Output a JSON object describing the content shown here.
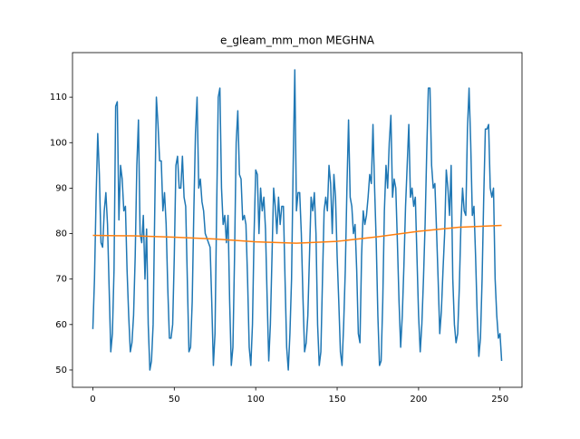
{
  "chart_data": {
    "type": "line",
    "title": "e_gleam_mm_mon MEGHNA",
    "xlim": [
      -12.5,
      263.5
    ],
    "ylim": [
      46.2,
      119.8
    ],
    "xticks": [
      0,
      50,
      100,
      150,
      200,
      250
    ],
    "yticks": [
      50,
      60,
      70,
      80,
      90,
      100,
      110
    ],
    "series": [
      {
        "color": "#1f77b4",
        "x": [
          0,
          1,
          2,
          3,
          4,
          5,
          6,
          7,
          8,
          9,
          10,
          11,
          12,
          13,
          14,
          15,
          16,
          17,
          18,
          19,
          20,
          21,
          22,
          23,
          24,
          25,
          26,
          27,
          28,
          29,
          30,
          31,
          32,
          33,
          34,
          35,
          36,
          37,
          38,
          39,
          40,
          41,
          42,
          43,
          44,
          45,
          46,
          47,
          48,
          49,
          50,
          51,
          52,
          53,
          54,
          55,
          56,
          57,
          58,
          59,
          60,
          61,
          62,
          63,
          64,
          65,
          66,
          67,
          68,
          69,
          70,
          71,
          72,
          73,
          74,
          75,
          76,
          77,
          78,
          79,
          80,
          81,
          82,
          83,
          84,
          85,
          86,
          87,
          88,
          89,
          90,
          91,
          92,
          93,
          94,
          95,
          96,
          97,
          98,
          99,
          100,
          101,
          102,
          103,
          104,
          105,
          106,
          107,
          108,
          109,
          110,
          111,
          112,
          113,
          114,
          115,
          116,
          117,
          118,
          119,
          120,
          121,
          122,
          123,
          124,
          125,
          126,
          127,
          128,
          129,
          130,
          131,
          132,
          133,
          134,
          135,
          136,
          137,
          138,
          139,
          140,
          141,
          142,
          143,
          144,
          145,
          146,
          147,
          148,
          149,
          150,
          151,
          152,
          153,
          154,
          155,
          156,
          157,
          158,
          159,
          160,
          161,
          162,
          163,
          164,
          165,
          166,
          167,
          168,
          169,
          170,
          171,
          172,
          173,
          174,
          175,
          176,
          177,
          178,
          179,
          180,
          181,
          182,
          183,
          184,
          185,
          186,
          187,
          188,
          189,
          190,
          191,
          192,
          193,
          194,
          195,
          196,
          197,
          198,
          199,
          200,
          201,
          202,
          203,
          204,
          205,
          206,
          207,
          208,
          209,
          210,
          211,
          212,
          213,
          214,
          215,
          216,
          217,
          218,
          219,
          220,
          221,
          222,
          223,
          224,
          225,
          226,
          227,
          228,
          229,
          230,
          231,
          232,
          233,
          234,
          235,
          236,
          237,
          238,
          239,
          240,
          241,
          242,
          243,
          244,
          245,
          246,
          247,
          248,
          249,
          250,
          251
        ],
        "values": [
          59,
          70,
          88,
          102,
          93,
          78,
          77,
          85,
          89,
          82,
          68,
          54,
          58,
          72,
          108,
          109,
          83,
          95,
          92,
          85,
          86,
          72,
          62,
          54,
          56,
          62,
          75,
          95,
          105,
          80,
          78,
          84,
          70,
          81,
          60,
          50,
          52,
          60,
          85,
          110,
          104,
          96,
          96,
          85,
          89,
          82,
          68,
          57,
          57,
          60,
          75,
          95,
          97,
          90,
          90,
          97,
          88,
          86,
          70,
          54,
          55,
          65,
          85,
          102,
          110,
          90,
          92,
          87,
          85,
          80,
          79,
          78,
          77,
          65,
          51,
          58,
          85,
          110,
          112,
          90,
          82,
          84,
          78,
          84,
          65,
          51,
          55,
          75,
          100,
          107,
          93,
          92,
          83,
          84,
          82,
          70,
          55,
          51,
          60,
          80,
          94,
          93,
          80,
          90,
          85,
          88,
          81,
          66,
          52,
          60,
          75,
          90,
          86,
          80,
          88,
          82,
          86,
          86,
          70,
          55,
          50,
          58,
          70,
          95,
          116,
          85,
          89,
          89,
          80,
          66,
          54,
          56,
          62,
          75,
          88,
          85,
          89,
          80,
          60,
          51,
          54,
          70,
          85,
          88,
          85,
          95,
          91,
          80,
          93,
          88,
          75,
          65,
          54,
          51,
          60,
          72,
          90,
          105,
          88,
          86,
          80,
          82,
          72,
          58,
          56,
          75,
          85,
          82,
          84,
          88,
          93,
          91,
          104,
          90,
          78,
          62,
          51,
          52,
          65,
          85,
          95,
          90,
          100,
          106,
          88,
          92,
          90,
          78,
          65,
          55,
          62,
          73,
          86,
          95,
          104,
          88,
          90,
          86,
          88,
          75,
          62,
          54,
          60,
          70,
          82,
          98,
          112,
          112,
          95,
          90,
          91,
          81,
          70,
          58,
          63,
          72,
          80,
          94,
          90,
          84,
          95,
          70,
          60,
          56,
          58,
          68,
          82,
          90,
          85,
          84,
          103,
          112,
          100,
          84,
          86,
          75,
          62,
          53,
          57,
          70,
          88,
          103,
          103,
          104,
          90,
          88,
          90,
          70,
          62,
          57,
          58,
          52
        ]
      },
      {
        "color": "#ff7f0e",
        "x": [
          0,
          25,
          50,
          75,
          100,
          125,
          150,
          175,
          200,
          225,
          251
        ],
        "values": [
          79.6,
          79.5,
          79.2,
          78.8,
          78.2,
          77.9,
          78.3,
          79.3,
          80.5,
          81.4,
          81.8
        ]
      }
    ]
  }
}
